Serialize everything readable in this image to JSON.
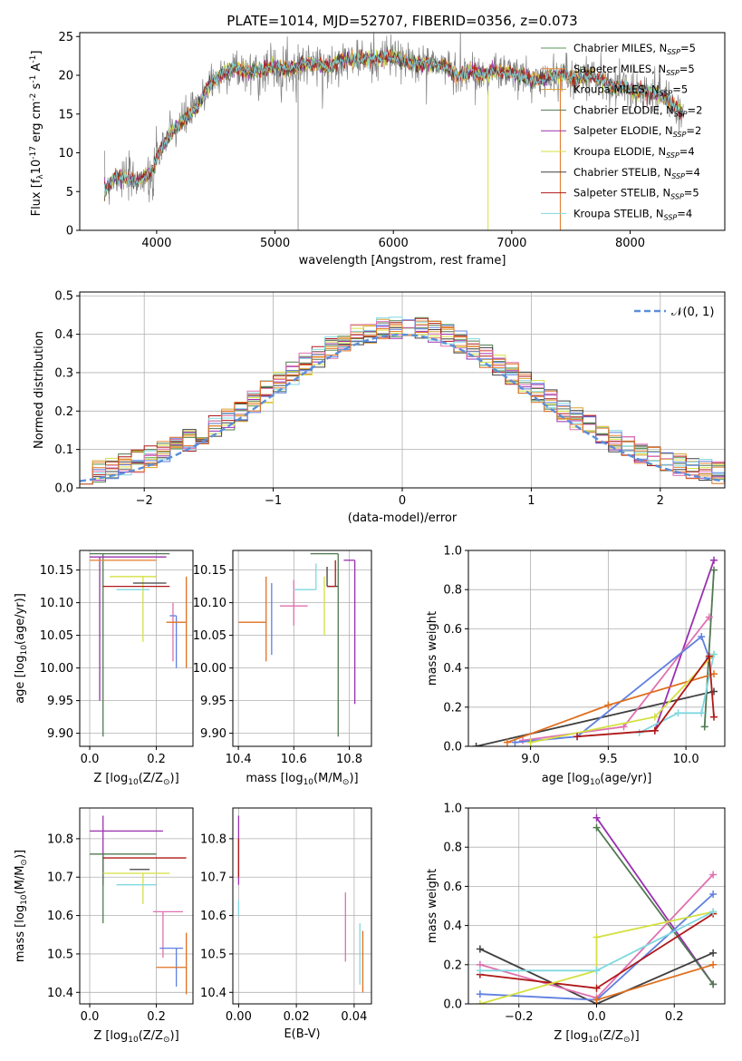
{
  "title": "PLATE=1014, MJD=52707, FIBERID=0356, z=0.073",
  "colors": [
    "#5a9a5a",
    "#e8883a",
    "#d9a030",
    "#507850",
    "#9a30b0",
    "#d4e040",
    "#404040",
    "#b01818",
    "#80d8e0",
    "#e070b0",
    "#6080e0",
    "#e07020"
  ],
  "legend": [
    {
      "label": "Chabrier MILES, N",
      "sub": "SSP",
      "suffix": "=5",
      "color": "#5a9a5a"
    },
    {
      "label": "Salpeter MILES, N",
      "sub": "SSP",
      "suffix": "=5",
      "color": "#e8883a"
    },
    {
      "label": "Kroupa MILES, N",
      "sub": "SSP",
      "suffix": "=5",
      "color": "#d9a030"
    },
    {
      "label": "Chabrier ELODIE, N",
      "sub": "SSP",
      "suffix": "=2",
      "color": "#507850"
    },
    {
      "label": "Salpeter ELODIE, N",
      "sub": "SSP",
      "suffix": "=2",
      "color": "#9a30b0"
    },
    {
      "label": "Kroupa ELODIE, N",
      "sub": "SSP",
      "suffix": "=4",
      "color": "#d4e040"
    },
    {
      "label": "Chabrier STELIB, N",
      "sub": "SSP",
      "suffix": "=4",
      "color": "#404040"
    },
    {
      "label": "Salpeter STELIB, N",
      "sub": "SSP",
      "suffix": "=5",
      "color": "#b01818"
    },
    {
      "label": "Kroupa STELIB, N",
      "sub": "SSP",
      "suffix": "=4",
      "color": "#80d8e0"
    }
  ],
  "chart_data": [
    {
      "type": "line",
      "id": "spectrum",
      "xlabel": "wavelength [Angstrom, rest frame]",
      "ylabel_parts": [
        "Flux [f",
        "λ",
        "10",
        "-17",
        " erg cm",
        "-2",
        " s",
        "-1",
        " A",
        "-1",
        "]"
      ],
      "xlim": [
        3350,
        8800
      ],
      "ylim": [
        0,
        25.5
      ],
      "xticks": [
        4000,
        5000,
        6000,
        7000,
        8000
      ],
      "yticks": [
        0,
        5,
        10,
        15,
        20,
        25
      ],
      "continuum": {
        "x": [
          3550,
          3650,
          3750,
          3850,
          3950,
          4050,
          4150,
          4250,
          4350,
          4450,
          4550,
          4650,
          4750,
          4850,
          4950,
          5050,
          5150,
          5250,
          5350,
          5450,
          5550,
          5650,
          5750,
          5850,
          5950,
          6050,
          6150,
          6250,
          6350,
          6450,
          6550,
          6650,
          6750,
          6850,
          6950,
          7050,
          7150,
          7250,
          7350,
          7450,
          7550,
          7650,
          7750,
          7850,
          7950,
          8050,
          8150,
          8250,
          8450
        ],
        "y": [
          5,
          7,
          6.5,
          6.5,
          7.5,
          11,
          13,
          14.5,
          16,
          19,
          20,
          21,
          20.5,
          20.5,
          21,
          21,
          21,
          21.5,
          21.5,
          21,
          22,
          22,
          22,
          22,
          22.5,
          22,
          21.5,
          21.5,
          21.5,
          21,
          20,
          20.5,
          20,
          20.5,
          20.5,
          20,
          19.5,
          19.5,
          20,
          20,
          19.5,
          20,
          19.5,
          18.5,
          18.5,
          18,
          18,
          17.5,
          15
        ]
      }
    },
    {
      "type": "histogram",
      "id": "residuals",
      "xlabel": "(data-model)/error",
      "ylabel": "Normed distribution",
      "xlim": [
        -2.5,
        2.5
      ],
      "ylim": [
        0,
        0.51
      ],
      "xticks": [
        -2,
        -1,
        0,
        1,
        2
      ],
      "yticks": [
        0,
        0.1,
        0.2,
        0.3,
        0.4,
        0.5
      ],
      "legend_label": "𝒩(0, 1)",
      "gaussian": {
        "mu": 0,
        "sigma": 1,
        "color": "#5b8fd8"
      },
      "bin_width": 0.1
    },
    {
      "type": "errorbar",
      "id": "age-vs-Z",
      "xlabel_parts": [
        "Z [log",
        "10",
        "(Z/Z",
        "⊙",
        ")]"
      ],
      "ylabel_parts": [
        "age  [log",
        "10",
        "(age/yr)]"
      ],
      "xlim": [
        -0.03,
        0.31
      ],
      "ylim": [
        9.88,
        10.18
      ],
      "xticks": [
        0.0,
        0.2
      ],
      "yticks": [
        9.9,
        9.95,
        10.0,
        10.05,
        10.1,
        10.15
      ],
      "points": [
        {
          "x": 0.04,
          "y": 10.175,
          "xerr": [
            0.04,
            0.2
          ],
          "yerr": [
            0.28,
            0.0
          ],
          "color": "#507850"
        },
        {
          "x": 0.03,
          "y": 10.17,
          "xerr": [
            0.03,
            0.2
          ],
          "yerr": [
            0.22,
            0.0
          ],
          "color": "#9a30b0"
        },
        {
          "x": 0.1,
          "y": 10.165,
          "xerr": [
            0.1,
            0.1
          ],
          "yerr": [
            0.0,
            0.0
          ],
          "color": "#e8883a"
        },
        {
          "x": 0.16,
          "y": 10.14,
          "xerr": [
            0.1,
            0.04
          ],
          "yerr": [
            0.1,
            0.0
          ],
          "color": "#d4e040"
        },
        {
          "x": 0.13,
          "y": 10.13,
          "xerr": [
            0.0,
            0.1
          ],
          "yerr": [
            0.0,
            0.0
          ],
          "color": "#404040"
        },
        {
          "x": 0.04,
          "y": 10.125,
          "xerr": [
            0.0,
            0.2
          ],
          "yerr": [
            0.0,
            0.0
          ],
          "color": "#b01818"
        },
        {
          "x": 0.18,
          "y": 10.12,
          "xerr": [
            0.1,
            0.0
          ],
          "yerr": [
            0.0,
            0.0
          ],
          "color": "#80d8e0"
        },
        {
          "x": 0.25,
          "y": 10.1,
          "xerr": [
            0.0,
            0.0
          ],
          "yerr": [
            0.09,
            0.0
          ],
          "color": "#e070b0"
        },
        {
          "x": 0.26,
          "y": 10.08,
          "xerr": [
            0.02,
            0.0
          ],
          "yerr": [
            0.08,
            0.0
          ],
          "color": "#6080e0"
        },
        {
          "x": 0.29,
          "y": 10.07,
          "xerr": [
            0.06,
            0.0
          ],
          "yerr": [
            0.07,
            0.07
          ],
          "color": "#e07020"
        }
      ]
    },
    {
      "type": "errorbar",
      "id": "age-vs-mass",
      "xlabel_parts": [
        "mass [log",
        "10",
        "(M/M",
        "⊙",
        ")]"
      ],
      "xlim": [
        10.38,
        10.88
      ],
      "ylim": [
        9.88,
        10.18
      ],
      "xticks": [
        10.4,
        10.6,
        10.8
      ],
      "yticks": [
        9.9,
        9.95,
        10.0,
        10.05,
        10.1,
        10.15
      ],
      "points": [
        {
          "x": 10.5,
          "y": 10.07,
          "xerr": [
            0.1,
            0.0
          ],
          "yerr": [
            0.06,
            0.07
          ],
          "color": "#e07020"
        },
        {
          "x": 10.52,
          "y": 10.08,
          "xerr": [
            0.0,
            0.0
          ],
          "yerr": [
            0.06,
            0.05
          ],
          "color": "#6080e0"
        },
        {
          "x": 10.6,
          "y": 10.095,
          "xerr": [
            0.05,
            0.05
          ],
          "yerr": [
            0.03,
            0.04
          ],
          "color": "#e070b0"
        },
        {
          "x": 10.68,
          "y": 10.12,
          "xerr": [
            0.08,
            0.0
          ],
          "yerr": [
            0.0,
            0.04
          ],
          "color": "#80d8e0"
        },
        {
          "x": 10.72,
          "y": 10.125,
          "xerr": [
            0.0,
            0.04
          ],
          "yerr": [
            0.0,
            0.03
          ],
          "color": "#404040"
        },
        {
          "x": 10.75,
          "y": 10.125,
          "xerr": [
            0.03,
            0.0
          ],
          "yerr": [
            0.0,
            0.04
          ],
          "color": "#b01818"
        },
        {
          "x": 10.71,
          "y": 10.14,
          "xerr": [
            0.0,
            0.0
          ],
          "yerr": [
            0.09,
            0.0
          ],
          "color": "#d4e040"
        },
        {
          "x": 10.76,
          "y": 10.175,
          "xerr": [
            0.1,
            0.0
          ],
          "yerr": [
            0.28,
            0.0
          ],
          "color": "#507850"
        },
        {
          "x": 10.82,
          "y": 10.165,
          "xerr": [
            0.04,
            0.0
          ],
          "yerr": [
            0.22,
            0.0
          ],
          "color": "#9a30b0"
        }
      ]
    },
    {
      "type": "line",
      "id": "massweight-vs-age",
      "xlabel_parts": [
        "age  [log",
        "10",
        "(age/yr)]"
      ],
      "ylabel": "mass weight",
      "xlim": [
        8.6,
        10.25
      ],
      "ylim": [
        0,
        1
      ],
      "xticks": [
        9.0,
        9.5,
        10.0
      ],
      "yticks": [
        0,
        0.2,
        0.4,
        0.6,
        0.8,
        1.0
      ],
      "series": [
        {
          "color": "#404040",
          "x": [
            8.65,
            10.18
          ],
          "y": [
            0.0,
            0.28
          ]
        },
        {
          "color": "#9a30b0",
          "x": [
            9.8,
            10.18
          ],
          "y": [
            0.08,
            0.95
          ]
        },
        {
          "color": "#507850",
          "x": [
            10.12,
            10.18
          ],
          "y": [
            0.1,
            0.9
          ]
        },
        {
          "color": "#e070b0",
          "x": [
            8.95,
            9.6,
            10.15
          ],
          "y": [
            0.03,
            0.1,
            0.66
          ]
        },
        {
          "color": "#6080e0",
          "x": [
            8.9,
            9.3,
            10.1,
            10.15
          ],
          "y": [
            0.02,
            0.05,
            0.56,
            0.45
          ]
        },
        {
          "color": "#e07020",
          "x": [
            8.85,
            9.5,
            10.18
          ],
          "y": [
            0.02,
            0.21,
            0.37
          ]
        },
        {
          "color": "#d4e040",
          "x": [
            9.0,
            9.8,
            10.18
          ],
          "y": [
            0.02,
            0.15,
            0.47
          ]
        },
        {
          "color": "#80d8e0",
          "x": [
            9.7,
            9.95,
            10.1,
            10.18
          ],
          "y": [
            0.07,
            0.17,
            0.17,
            0.47
          ]
        },
        {
          "color": "#b01818",
          "x": [
            9.3,
            9.8,
            10.15,
            10.18
          ],
          "y": [
            0.05,
            0.08,
            0.46,
            0.15
          ]
        }
      ]
    },
    {
      "type": "errorbar",
      "id": "mass-vs-Z",
      "xlabel_parts": [
        "Z [log",
        "10",
        "(Z/Z",
        "⊙",
        ")]"
      ],
      "ylabel_parts": [
        "mass [log",
        "10",
        "(M/M",
        "⊙",
        ")]"
      ],
      "xlim": [
        -0.03,
        0.31
      ],
      "ylim": [
        10.37,
        10.88
      ],
      "xticks": [
        0.0,
        0.2
      ],
      "yticks": [
        10.4,
        10.5,
        10.6,
        10.7,
        10.8
      ],
      "points": [
        {
          "x": 0.04,
          "y": 10.82,
          "xerr": [
            0.04,
            0.18
          ],
          "yerr": [
            0.14,
            0.04
          ],
          "color": "#9a30b0"
        },
        {
          "x": 0.04,
          "y": 10.76,
          "xerr": [
            0.04,
            0.16
          ],
          "yerr": [
            0.18,
            0.0
          ],
          "color": "#507850"
        },
        {
          "x": 0.04,
          "y": 10.75,
          "xerr": [
            0.0,
            0.25
          ],
          "yerr": [
            0.0,
            0.0
          ],
          "color": "#b01818"
        },
        {
          "x": 0.16,
          "y": 10.72,
          "xerr": [
            0.04,
            0.02
          ],
          "yerr": [
            0.0,
            0.0
          ],
          "color": "#404040"
        },
        {
          "x": 0.16,
          "y": 10.71,
          "xerr": [
            0.12,
            0.08
          ],
          "yerr": [
            0.08,
            0.0
          ],
          "color": "#d4e040"
        },
        {
          "x": 0.2,
          "y": 10.68,
          "xerr": [
            0.12,
            0.0
          ],
          "yerr": [
            0.0,
            0.0
          ],
          "color": "#80d8e0"
        },
        {
          "x": 0.22,
          "y": 10.61,
          "xerr": [
            0.03,
            0.06
          ],
          "yerr": [
            0.12,
            0.0
          ],
          "color": "#e070b0"
        },
        {
          "x": 0.26,
          "y": 10.515,
          "xerr": [
            0.05,
            0.02
          ],
          "yerr": [
            0.1,
            0.0
          ],
          "color": "#6080e0"
        },
        {
          "x": 0.29,
          "y": 10.465,
          "xerr": [
            0.09,
            0.0
          ],
          "yerr": [
            0.07,
            0.09
          ],
          "color": "#e07020"
        }
      ]
    },
    {
      "type": "errorbar",
      "id": "mass-vs-EBV",
      "xlabel": "E(B-V)",
      "xlim": [
        -0.002,
        0.046
      ],
      "ylim": [
        10.37,
        10.88
      ],
      "xticks": [
        0.0,
        0.02,
        0.04
      ],
      "yticks": [
        10.4,
        10.5,
        10.6,
        10.7,
        10.8
      ],
      "points": [
        {
          "x": 0.0,
          "y": 10.82,
          "xerr": [
            0,
            0
          ],
          "yerr": [
            0.14,
            0.04
          ],
          "color": "#9a30b0"
        },
        {
          "x": 0.0,
          "y": 10.75,
          "xerr": [
            0,
            0
          ],
          "yerr": [
            0.05,
            0.05
          ],
          "color": "#b01818"
        },
        {
          "x": 0.0,
          "y": 10.62,
          "xerr": [
            0,
            0
          ],
          "yerr": [
            0.02,
            0.02
          ],
          "color": "#80d8e0"
        },
        {
          "x": 0.037,
          "y": 10.57,
          "xerr": [
            0,
            0
          ],
          "yerr": [
            0.09,
            0.09
          ],
          "color": "#e070b0"
        },
        {
          "x": 0.042,
          "y": 10.5,
          "xerr": [
            0,
            0
          ],
          "yerr": [
            0.08,
            0.08
          ],
          "color": "#80d8e0"
        },
        {
          "x": 0.043,
          "y": 10.47,
          "xerr": [
            0,
            0
          ],
          "yerr": [
            0.07,
            0.09
          ],
          "color": "#e07020"
        }
      ]
    },
    {
      "type": "line",
      "id": "massweight-vs-Z",
      "xlabel_parts": [
        "Z [log",
        "10",
        "(Z/Z",
        "⊙",
        ")]"
      ],
      "ylabel": "mass weight",
      "xlim": [
        -0.33,
        0.33
      ],
      "ylim": [
        0,
        1
      ],
      "xticks": [
        -0.2,
        0.0,
        0.2
      ],
      "yticks": [
        0,
        0.2,
        0.4,
        0.6,
        0.8,
        1.0
      ],
      "series": [
        {
          "color": "#9a30b0",
          "x": [
            0.0,
            0.3
          ],
          "y": [
            0.95,
            0.1
          ]
        },
        {
          "color": "#507850",
          "x": [
            0.0,
            0.3
          ],
          "y": [
            0.9,
            0.1
          ]
        },
        {
          "color": "#404040",
          "x": [
            -0.3,
            0.0,
            0.3
          ],
          "y": [
            0.28,
            0.0,
            0.26
          ]
        },
        {
          "color": "#e070b0",
          "x": [
            -0.3,
            0.0,
            0.3
          ],
          "y": [
            0.2,
            0.03,
            0.66
          ]
        },
        {
          "color": "#6080e0",
          "x": [
            -0.3,
            0.0,
            0.3
          ],
          "y": [
            0.05,
            0.02,
            0.56
          ]
        },
        {
          "color": "#b01818",
          "x": [
            -0.3,
            0.0,
            0.3
          ],
          "y": [
            0.15,
            0.08,
            0.46
          ]
        },
        {
          "color": "#e07020",
          "x": [
            0.0,
            0.3
          ],
          "y": [
            0.02,
            0.2
          ]
        },
        {
          "color": "#d4e040",
          "x": [
            -0.3,
            0.0,
            0.0,
            0.3
          ],
          "y": [
            0.0,
            0.17,
            0.34,
            0.47
          ]
        },
        {
          "color": "#80d8e0",
          "x": [
            -0.3,
            0.0,
            0.3
          ],
          "y": [
            0.17,
            0.17,
            0.47
          ]
        }
      ]
    }
  ]
}
